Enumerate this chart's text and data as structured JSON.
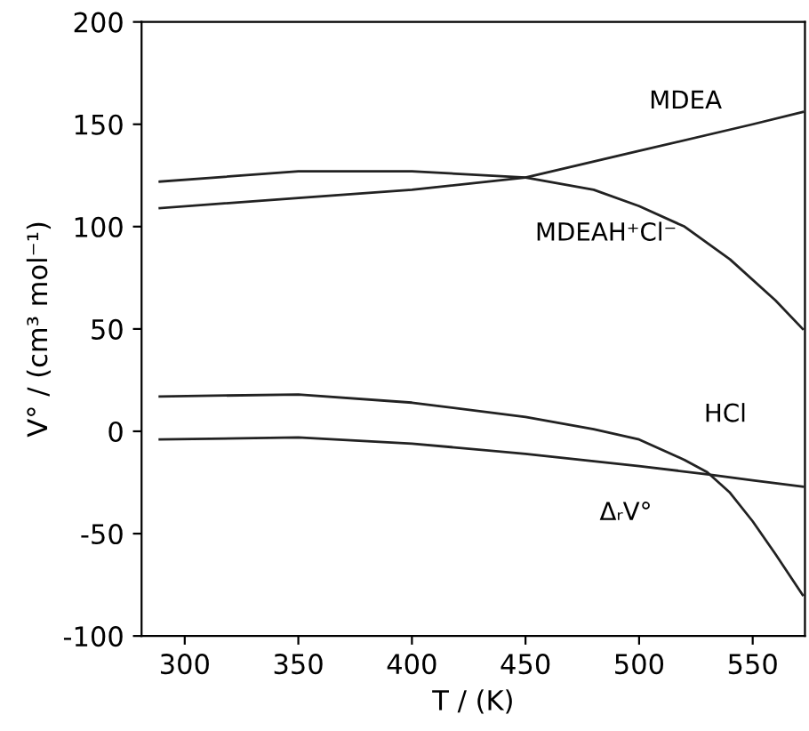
{
  "chart_data": {
    "type": "line",
    "xlabel": "T / (K)",
    "ylabel": "V° / (cm³ mol⁻¹)",
    "xlim": [
      281,
      573
    ],
    "ylim": [
      -100,
      200
    ],
    "xticks": [
      300,
      350,
      400,
      450,
      500,
      550
    ],
    "yticks": [
      -100,
      -50,
      0,
      50,
      100,
      150,
      200
    ],
    "grid": false,
    "legend": false,
    "marker": "none",
    "line_style": "solid",
    "series": [
      {
        "color": "#222222",
        "x": [
          289,
          350,
          400,
          450,
          500,
          550,
          572
        ],
        "values": [
          109,
          114,
          118,
          124,
          137,
          150,
          156
        ]
      },
      {
        "color": "#222222",
        "x": [
          289,
          350,
          400,
          450,
          480,
          500,
          520,
          540,
          560,
          572
        ],
        "values": [
          122,
          127,
          127,
          124,
          118,
          110,
          100,
          84,
          64,
          50
        ]
      },
      {
        "color": "#222222",
        "x": [
          289,
          350,
          400,
          450,
          480,
          500,
          520,
          530,
          540,
          550,
          560,
          572
        ],
        "values": [
          17,
          18,
          14,
          7,
          1,
          -4,
          -14,
          -20,
          -30,
          -44,
          -60,
          -80
        ]
      },
      {
        "color": "#222222",
        "x": [
          289,
          350,
          400,
          450,
          500,
          530,
          550,
          572
        ],
        "values": [
          -4,
          -3,
          -6,
          -11,
          -17,
          -21,
          -24,
          -27
        ]
      }
    ],
    "annotations": [
      "MDEA",
      "MDEAH⁺Cl⁻",
      "HCl",
      "ΔᵣV°"
    ]
  }
}
